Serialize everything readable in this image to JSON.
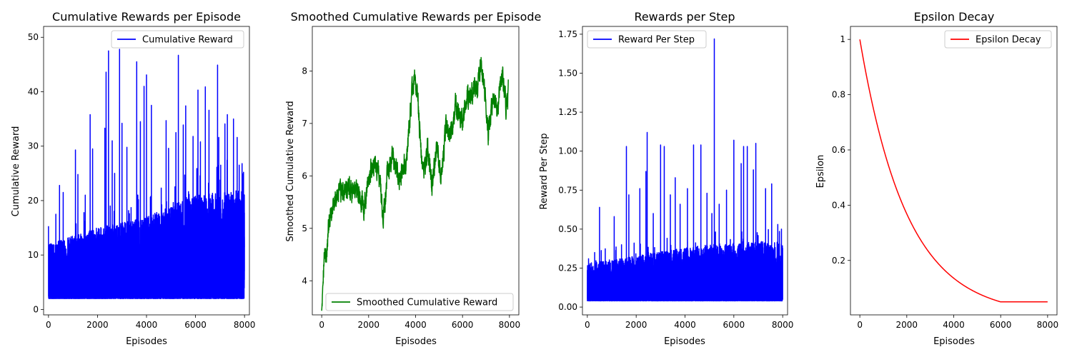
{
  "chart_data": [
    {
      "type": "line",
      "title": "Cumulative Rewards per Episode",
      "xlabel": "Episodes",
      "ylabel": "Cumulative Reward",
      "xlim": [
        -200,
        8200
      ],
      "ylim": [
        -1,
        52
      ],
      "xticks": [
        0,
        2000,
        4000,
        6000,
        8000
      ],
      "yticks": [
        0,
        10,
        20,
        30,
        40,
        50
      ],
      "legend": "top-right",
      "grid": false,
      "series": [
        {
          "name": "Cumulative Reward",
          "color": "#0000ff",
          "kind": "noisy",
          "base": [
            [
              0,
              2
            ],
            [
              8000,
              2
            ]
          ],
          "typical_high": [
            [
              0,
              12
            ],
            [
              2000,
              15
            ],
            [
              4000,
              17
            ],
            [
              6000,
              21
            ],
            [
              8000,
              22
            ]
          ],
          "spikes": [
            [
              0,
              15.3
            ],
            [
              300,
              17.5
            ],
            [
              450,
              22.8
            ],
            [
              600,
              21.5
            ],
            [
              1100,
              29.3
            ],
            [
              1200,
              24.8
            ],
            [
              1500,
              21
            ],
            [
              1700,
              35.8
            ],
            [
              1800,
              29.5
            ],
            [
              2300,
              33.3
            ],
            [
              2350,
              43.6
            ],
            [
              2450,
              47.5
            ],
            [
              2600,
              31
            ],
            [
              2700,
              25
            ],
            [
              2900,
              47.8
            ],
            [
              3000,
              34.2
            ],
            [
              3200,
              29.8
            ],
            [
              3600,
              45.5
            ],
            [
              3750,
              34.5
            ],
            [
              3900,
              41
            ],
            [
              4000,
              43.1
            ],
            [
              4200,
              37.5
            ],
            [
              4800,
              34.7
            ],
            [
              4900,
              29.6
            ],
            [
              5200,
              32.5
            ],
            [
              5300,
              46.7
            ],
            [
              5500,
              33.9
            ],
            [
              5600,
              37.4
            ],
            [
              5900,
              31.8
            ],
            [
              6100,
              40.3
            ],
            [
              6200,
              30.8
            ],
            [
              6400,
              40.9
            ],
            [
              6550,
              36.6
            ],
            [
              6900,
              44.9
            ],
            [
              6950,
              31.6
            ],
            [
              7200,
              34.1
            ],
            [
              7300,
              35.8
            ],
            [
              7550,
              35
            ],
            [
              7700,
              31.6
            ],
            [
              7900,
              26.8
            ],
            [
              7960,
              25.2
            ]
          ],
          "n": 8000
        }
      ]
    },
    {
      "type": "line",
      "title": "Smoothed Cumulative Rewards per Episode",
      "xlabel": "Episodes",
      "ylabel": "Smoothed Cumulative Reward",
      "xlim": [
        -400,
        8400
      ],
      "ylim": [
        3.35,
        8.85
      ],
      "xticks": [
        0,
        2000,
        4000,
        6000,
        8000
      ],
      "yticks": [
        4,
        5,
        6,
        7,
        8
      ],
      "legend": "bottom-right",
      "grid": false,
      "series": [
        {
          "name": "Smoothed Cumulative Reward",
          "color": "#008000",
          "kind": "smooth",
          "points": [
            [
              0,
              3.5
            ],
            [
              50,
              4.1
            ],
            [
              100,
              4.45
            ],
            [
              200,
              4.5
            ],
            [
              300,
              5.0
            ],
            [
              500,
              5.5
            ],
            [
              700,
              5.65
            ],
            [
              1000,
              5.7
            ],
            [
              1500,
              5.75
            ],
            [
              1800,
              5.4
            ],
            [
              2000,
              6.0
            ],
            [
              2300,
              6.3
            ],
            [
              2500,
              5.9
            ],
            [
              2600,
              5.15
            ],
            [
              2800,
              6.0
            ],
            [
              3000,
              6.4
            ],
            [
              3300,
              6.0
            ],
            [
              3600,
              6.3
            ],
            [
              3800,
              7.3
            ],
            [
              3950,
              8.0
            ],
            [
              4100,
              7.4
            ],
            [
              4300,
              6.0
            ],
            [
              4500,
              6.5
            ],
            [
              4700,
              5.8
            ],
            [
              4900,
              6.5
            ],
            [
              5100,
              6.0
            ],
            [
              5300,
              6.9
            ],
            [
              5500,
              6.8
            ],
            [
              5700,
              7.3
            ],
            [
              6000,
              7.0
            ],
            [
              6200,
              7.5
            ],
            [
              6400,
              7.6
            ],
            [
              6600,
              7.6
            ],
            [
              6800,
              8.2
            ],
            [
              6900,
              7.8
            ],
            [
              7100,
              6.8
            ],
            [
              7300,
              7.5
            ],
            [
              7500,
              7.2
            ],
            [
              7600,
              7.8
            ],
            [
              7700,
              7.9
            ],
            [
              7850,
              7.4
            ],
            [
              7950,
              7.6
            ]
          ],
          "noise": 0.32,
          "n": 1600
        }
      ]
    },
    {
      "type": "line",
      "title": "Rewards per Step",
      "xlabel": "Episodes",
      "ylabel": "Reward Per Step",
      "xlim": [
        -200,
        8200
      ],
      "ylim": [
        -0.05,
        1.8
      ],
      "xticks": [
        0,
        2000,
        4000,
        6000,
        8000
      ],
      "yticks": [
        0.0,
        0.25,
        0.5,
        0.75,
        1.0,
        1.25,
        1.5,
        1.75
      ],
      "ytick_labels": [
        "0.00",
        "0.25",
        "0.50",
        "0.75",
        "1.00",
        "1.25",
        "1.50",
        "1.75"
      ],
      "legend": "top-left",
      "grid": false,
      "series": [
        {
          "name": "Reward Per Step",
          "color": "#0000ff",
          "kind": "noisy",
          "base": [
            [
              0,
              0.04
            ],
            [
              8000,
              0.04
            ]
          ],
          "typical_high": [
            [
              0,
              0.28
            ],
            [
              2000,
              0.33
            ],
            [
              4000,
              0.38
            ],
            [
              6000,
              0.42
            ],
            [
              8000,
              0.42
            ]
          ],
          "spikes": [
            [
              50,
              0.31
            ],
            [
              300,
              0.35
            ],
            [
              500,
              0.64
            ],
            [
              1100,
              0.58
            ],
            [
              1400,
              0.4
            ],
            [
              1600,
              1.03
            ],
            [
              1700,
              0.72
            ],
            [
              2150,
              0.76
            ],
            [
              2400,
              0.87
            ],
            [
              2450,
              1.12
            ],
            [
              2700,
              0.6
            ],
            [
              3000,
              1.04
            ],
            [
              3150,
              1.03
            ],
            [
              3400,
              0.72
            ],
            [
              3600,
              0.83
            ],
            [
              3800,
              0.66
            ],
            [
              4100,
              0.76
            ],
            [
              4350,
              1.04
            ],
            [
              4650,
              1.04
            ],
            [
              4900,
              0.73
            ],
            [
              5100,
              0.6
            ],
            [
              5200,
              1.72
            ],
            [
              5400,
              0.66
            ],
            [
              5700,
              0.75
            ],
            [
              6000,
              1.07
            ],
            [
              6300,
              0.92
            ],
            [
              6400,
              1.03
            ],
            [
              6550,
              1.03
            ],
            [
              6800,
              0.88
            ],
            [
              6900,
              1.05
            ],
            [
              7300,
              0.76
            ],
            [
              7550,
              0.79
            ],
            [
              7800,
              0.53
            ],
            [
              7950,
              0.5
            ]
          ],
          "n": 8000
        }
      ]
    },
    {
      "type": "line",
      "title": "Epsilon Decay",
      "xlabel": "Episodes",
      "ylabel": "Epsilon",
      "xlim": [
        -400,
        8400
      ],
      "ylim": [
        0.003,
        1.047
      ],
      "xticks": [
        0,
        2000,
        4000,
        6000,
        8000
      ],
      "yticks": [
        0.2,
        0.4,
        0.6,
        0.8,
        1.0
      ],
      "legend": "top-right",
      "grid": false,
      "series": [
        {
          "name": "Epsilon Decay",
          "color": "#ff0000",
          "kind": "function",
          "start": 1.0,
          "floor": 0.05,
          "floor_at": 6000,
          "x_end": 8000
        }
      ]
    }
  ]
}
